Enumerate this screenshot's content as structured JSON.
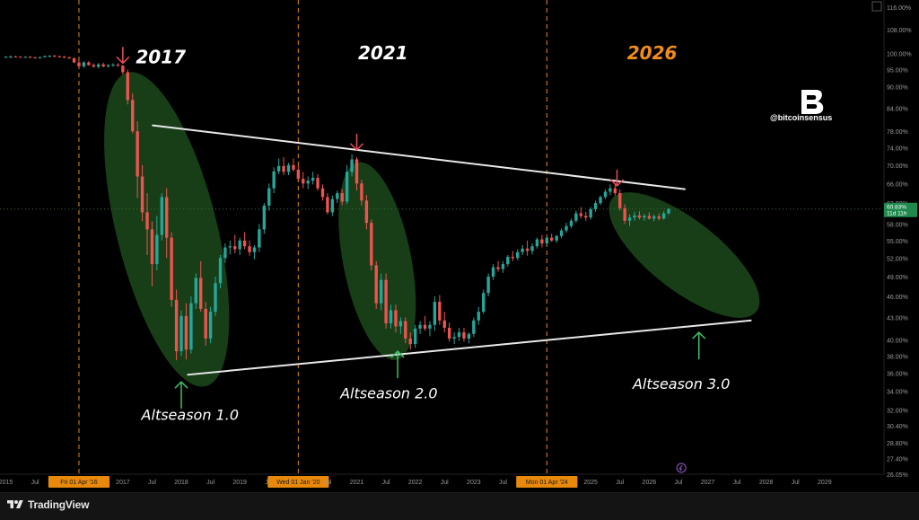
{
  "app": {
    "name": "TradingView"
  },
  "brand": {
    "handle": "@bitcoinsensus",
    "logo_letter": "B"
  },
  "colors": {
    "background": "#000000",
    "candle_up": "#26a69a",
    "candle_down": "#ef5350",
    "ellipse_fill": "#1f4f1f",
    "trendline": "#e8e8e8",
    "vline": "#e8890c",
    "arrow_down": "#ef4b5a",
    "arrow_up": "#3fbf6a",
    "year_white": "#ffffff",
    "year_orange": "#f28c1b"
  },
  "chart_data": {
    "type": "candlestick",
    "title": "",
    "ylabel": "",
    "xlabel": "",
    "y_scale": "log",
    "ylim": [
      26.05,
      116.0
    ],
    "xlim": [
      2014.9,
      2030.0
    ],
    "grid": false,
    "current_value_label": "60.83%",
    "countdown_label": "11d 11h",
    "y_ticks": [
      "116.00%",
      "108.00%",
      "100.00%",
      "95.00%",
      "90.00%",
      "84.00%",
      "78.00%",
      "74.00%",
      "70.00%",
      "66.00%",
      "62.00%",
      "58.00%",
      "55.00%",
      "52.00%",
      "49.00%",
      "46.00%",
      "43.00%",
      "40.00%",
      "38.00%",
      "36.00%",
      "34.00%",
      "32.00%",
      "30.40%",
      "28.80%",
      "27.40%",
      "26.05%"
    ],
    "x_ticks": [
      {
        "t": 2015.0,
        "label": "2015"
      },
      {
        "t": 2015.5,
        "label": "Jul"
      },
      {
        "t": 2016.25,
        "label": "Fri 01 Apr '16",
        "highlight": true
      },
      {
        "t": 2017.0,
        "label": "2017"
      },
      {
        "t": 2017.5,
        "label": "Jul"
      },
      {
        "t": 2018.0,
        "label": "2018"
      },
      {
        "t": 2018.5,
        "label": "Jul"
      },
      {
        "t": 2019.0,
        "label": "2019"
      },
      {
        "t": 2019.5,
        "label": "Jul"
      },
      {
        "t": 2020.0,
        "label": "Wed 01 Jan '20",
        "highlight": true
      },
      {
        "t": 2020.5,
        "label": "Jul"
      },
      {
        "t": 2021.0,
        "label": "2021"
      },
      {
        "t": 2021.5,
        "label": "Jul"
      },
      {
        "t": 2022.0,
        "label": "2022"
      },
      {
        "t": 2022.5,
        "label": "Jul"
      },
      {
        "t": 2023.0,
        "label": "2023"
      },
      {
        "t": 2023.5,
        "label": "Jul"
      },
      {
        "t": 2024.25,
        "label": "Mon 01 Apr '24",
        "highlight": true
      },
      {
        "t": 2025.0,
        "label": "2025"
      },
      {
        "t": 2025.5,
        "label": "Jul"
      },
      {
        "t": 2026.0,
        "label": "2026"
      },
      {
        "t": 2026.5,
        "label": "Jul"
      },
      {
        "t": 2027.0,
        "label": "2027"
      },
      {
        "t": 2027.5,
        "label": "Jul"
      },
      {
        "t": 2028.0,
        "label": "2028"
      },
      {
        "t": 2028.5,
        "label": "Jul"
      },
      {
        "t": 2029.0,
        "label": "2029"
      }
    ],
    "vertical_lines": [
      2016.25,
      2020.0,
      2024.25
    ],
    "trendlines": [
      {
        "name": "upper",
        "from": [
          2017.5,
          79.5
        ],
        "to": [
          2026.62,
          64.8
        ]
      },
      {
        "name": "lower",
        "from": [
          2018.1,
          35.8
        ],
        "to": [
          2027.75,
          42.6
        ]
      }
    ],
    "ellipses": [
      {
        "cx_t": 2017.75,
        "cy_v": 57.0,
        "label": "Altseason 1.0"
      },
      {
        "cx_t": 2021.35,
        "cy_v": 51.5,
        "label": "Altseason 2.0"
      },
      {
        "cx_t": 2026.6,
        "cy_v": 52.5,
        "label": "Altseason 3.0"
      }
    ],
    "annotations": [
      {
        "text": "2017",
        "t": 2017.65,
        "v": 97.0,
        "color": "white"
      },
      {
        "text": "2021",
        "t": 2021.45,
        "v": 98.2,
        "color": "white"
      },
      {
        "text": "2026",
        "t": 2026.05,
        "v": 98.2,
        "color": "orange"
      },
      {
        "text": "Altseason 1.0",
        "t": 2018.15,
        "v": 31.0
      },
      {
        "text": "Altseason 2.0",
        "t": 2021.55,
        "v": 33.2
      },
      {
        "text": "Altseason 3.0",
        "t": 2026.55,
        "v": 34.2
      }
    ],
    "arrows_down": [
      {
        "t": 2017.0,
        "v": 97.0
      },
      {
        "t": 2021.0,
        "v": 73.5
      },
      {
        "t": 2025.45,
        "v": 65.5
      }
    ],
    "arrows_up": [
      {
        "t": 2018.0,
        "v": 35.0
      },
      {
        "t": 2021.7,
        "v": 38.6
      },
      {
        "t": 2026.85,
        "v": 41.0
      }
    ],
    "candles": [
      [
        2015.0,
        99.0,
        99.2,
        98.6,
        99.0
      ],
      [
        2015.083,
        99.0,
        99.4,
        98.5,
        99.1
      ],
      [
        2015.167,
        99.1,
        99.3,
        98.8,
        99.0
      ],
      [
        2015.25,
        99.0,
        99.2,
        98.7,
        98.9
      ],
      [
        2015.333,
        98.9,
        99.1,
        98.6,
        99.0
      ],
      [
        2015.417,
        99.0,
        99.2,
        98.6,
        98.8
      ],
      [
        2015.5,
        98.8,
        99.0,
        98.5,
        98.7
      ],
      [
        2015.583,
        98.7,
        99.0,
        98.3,
        98.9
      ],
      [
        2015.667,
        98.9,
        99.4,
        98.7,
        99.2
      ],
      [
        2015.75,
        99.2,
        99.5,
        98.8,
        99.3
      ],
      [
        2015.833,
        99.3,
        99.6,
        98.9,
        99.1
      ],
      [
        2015.917,
        99.1,
        99.4,
        98.8,
        99.0
      ],
      [
        2016.0,
        99.0,
        99.3,
        98.6,
        98.8
      ],
      [
        2016.083,
        98.8,
        99.0,
        98.3,
        98.5
      ],
      [
        2016.167,
        98.5,
        98.8,
        97.0,
        97.2
      ],
      [
        2016.25,
        97.2,
        97.8,
        95.6,
        96.0
      ],
      [
        2016.333,
        96.0,
        97.6,
        95.5,
        97.2
      ],
      [
        2016.417,
        97.2,
        97.6,
        96.2,
        96.4
      ],
      [
        2016.5,
        96.4,
        96.9,
        95.6,
        95.9
      ],
      [
        2016.583,
        95.9,
        97.0,
        95.4,
        96.6
      ],
      [
        2016.667,
        96.6,
        97.1,
        95.7,
        96.0
      ],
      [
        2016.75,
        96.0,
        96.7,
        95.6,
        96.3
      ],
      [
        2016.833,
        96.3,
        97.0,
        95.9,
        96.5
      ],
      [
        2016.917,
        96.5,
        97.0,
        95.9,
        96.2
      ],
      [
        2017.0,
        96.2,
        96.4,
        93.5,
        94.2
      ],
      [
        2017.083,
        94.2,
        95.0,
        85.0,
        86.2
      ],
      [
        2017.167,
        86.2,
        88.0,
        77.5,
        78.0
      ],
      [
        2017.25,
        78.0,
        80.5,
        63.0,
        67.5
      ],
      [
        2017.333,
        67.5,
        70.0,
        58.5,
        60.2
      ],
      [
        2017.417,
        60.2,
        64.0,
        52.5,
        57.0
      ],
      [
        2017.5,
        57.0,
        58.5,
        47.5,
        51.0
      ],
      [
        2017.583,
        51.0,
        59.5,
        50.0,
        56.0
      ],
      [
        2017.667,
        56.0,
        64.0,
        55.0,
        63.2
      ],
      [
        2017.75,
        63.2,
        65.0,
        52.0,
        55.5
      ],
      [
        2017.833,
        55.5,
        56.5,
        44.5,
        45.5
      ],
      [
        2017.917,
        45.5,
        47.0,
        37.5,
        38.6
      ],
      [
        2018.0,
        38.6,
        44.0,
        38.0,
        43.2
      ],
      [
        2018.083,
        43.2,
        45.0,
        37.6,
        38.8
      ],
      [
        2018.167,
        38.8,
        46.0,
        38.3,
        45.0
      ],
      [
        2018.25,
        45.0,
        49.5,
        44.2,
        48.8
      ],
      [
        2018.333,
        48.8,
        51.5,
        43.8,
        44.2
      ],
      [
        2018.417,
        44.2,
        45.2,
        39.3,
        40.2
      ],
      [
        2018.5,
        40.2,
        44.5,
        39.6,
        43.8
      ],
      [
        2018.583,
        43.8,
        49.0,
        43.2,
        48.0
      ],
      [
        2018.667,
        48.0,
        52.5,
        47.2,
        52.0
      ],
      [
        2018.75,
        52.0,
        54.5,
        51.2,
        53.8
      ],
      [
        2018.833,
        53.8,
        55.0,
        52.6,
        54.0
      ],
      [
        2018.917,
        54.0,
        56.0,
        52.8,
        53.5
      ],
      [
        2019.0,
        53.5,
        55.5,
        52.5,
        55.0
      ],
      [
        2019.083,
        55.0,
        56.5,
        53.5,
        54.0
      ],
      [
        2019.167,
        54.0,
        55.0,
        52.4,
        53.0
      ],
      [
        2019.25,
        53.0,
        54.2,
        51.8,
        53.8
      ],
      [
        2019.333,
        53.8,
        58.0,
        53.0,
        57.0
      ],
      [
        2019.417,
        57.0,
        62.0,
        56.2,
        61.5
      ],
      [
        2019.5,
        61.5,
        66.0,
        60.5,
        65.0
      ],
      [
        2019.583,
        65.0,
        69.5,
        64.0,
        68.6
      ],
      [
        2019.667,
        68.6,
        71.5,
        68.0,
        69.8
      ],
      [
        2019.75,
        69.8,
        71.8,
        67.8,
        68.5
      ],
      [
        2019.833,
        68.5,
        70.5,
        67.8,
        70.0
      ],
      [
        2019.917,
        70.0,
        71.5,
        68.6,
        69.0
      ],
      [
        2020.0,
        69.0,
        69.8,
        66.5,
        67.0
      ],
      [
        2020.083,
        67.0,
        68.5,
        65.0,
        66.0
      ],
      [
        2020.167,
        66.0,
        67.5,
        64.8,
        66.6
      ],
      [
        2020.25,
        66.6,
        68.5,
        65.8,
        67.2
      ],
      [
        2020.333,
        67.2,
        68.0,
        64.5,
        65.0
      ],
      [
        2020.417,
        65.0,
        65.8,
        62.5,
        63.2
      ],
      [
        2020.5,
        63.2,
        64.0,
        59.8,
        60.2
      ],
      [
        2020.583,
        60.2,
        63.5,
        59.5,
        62.8
      ],
      [
        2020.667,
        62.8,
        64.5,
        62.0,
        64.0
      ],
      [
        2020.75,
        64.0,
        64.8,
        61.6,
        62.3
      ],
      [
        2020.833,
        62.3,
        70.0,
        61.8,
        68.5
      ],
      [
        2020.917,
        68.5,
        72.5,
        67.5,
        71.3
      ],
      [
        2021.0,
        71.3,
        71.8,
        64.5,
        66.0
      ],
      [
        2021.083,
        66.0,
        66.8,
        61.5,
        62.5
      ],
      [
        2021.167,
        62.5,
        63.6,
        57.0,
        58.2
      ],
      [
        2021.25,
        58.2,
        58.8,
        50.0,
        50.8
      ],
      [
        2021.333,
        50.8,
        51.5,
        44.2,
        45.0
      ],
      [
        2021.417,
        45.0,
        49.5,
        44.0,
        48.5
      ],
      [
        2021.5,
        48.5,
        49.5,
        41.5,
        42.2
      ],
      [
        2021.583,
        42.2,
        44.8,
        41.5,
        44.0
      ],
      [
        2021.667,
        44.0,
        44.8,
        41.0,
        41.8
      ],
      [
        2021.75,
        41.8,
        43.0,
        40.8,
        42.5
      ],
      [
        2021.833,
        42.5,
        43.0,
        39.6,
        40.2
      ],
      [
        2021.917,
        40.2,
        41.0,
        38.8,
        39.5
      ],
      [
        2022.0,
        39.5,
        42.0,
        39.0,
        41.5
      ],
      [
        2022.083,
        41.5,
        42.5,
        40.8,
        42.0
      ],
      [
        2022.167,
        42.0,
        43.2,
        41.2,
        41.5
      ],
      [
        2022.25,
        41.5,
        42.5,
        40.5,
        42.0
      ],
      [
        2022.333,
        42.0,
        46.0,
        41.2,
        45.2
      ],
      [
        2022.417,
        45.2,
        46.2,
        42.0,
        42.6
      ],
      [
        2022.5,
        42.6,
        43.8,
        41.0,
        41.6
      ],
      [
        2022.583,
        41.6,
        42.3,
        39.8,
        40.2
      ],
      [
        2022.667,
        40.2,
        41.0,
        39.5,
        40.4
      ],
      [
        2022.75,
        40.4,
        41.6,
        39.9,
        41.0
      ],
      [
        2022.833,
        41.0,
        41.6,
        39.8,
        40.2
      ],
      [
        2022.917,
        40.2,
        41.0,
        39.6,
        40.8
      ],
      [
        2023.0,
        40.8,
        43.0,
        40.4,
        42.6
      ],
      [
        2023.083,
        42.6,
        44.5,
        42.0,
        43.8
      ],
      [
        2023.167,
        43.8,
        47.0,
        43.5,
        46.5
      ],
      [
        2023.25,
        46.5,
        49.5,
        46.0,
        49.0
      ],
      [
        2023.333,
        49.0,
        51.0,
        48.5,
        50.5
      ],
      [
        2023.417,
        50.5,
        51.5,
        49.8,
        50.2
      ],
      [
        2023.5,
        50.2,
        51.5,
        49.6,
        51.0
      ],
      [
        2023.583,
        51.0,
        52.5,
        50.6,
        52.2
      ],
      [
        2023.667,
        52.2,
        53.2,
        51.5,
        52.0
      ],
      [
        2023.75,
        52.0,
        53.5,
        51.6,
        53.0
      ],
      [
        2023.833,
        53.0,
        54.2,
        52.5,
        53.6
      ],
      [
        2023.917,
        53.6,
        55.0,
        52.4,
        53.2
      ],
      [
        2024.0,
        53.2,
        54.5,
        52.6,
        54.0
      ],
      [
        2024.083,
        54.0,
        55.5,
        53.6,
        55.2
      ],
      [
        2024.167,
        55.2,
        56.0,
        53.8,
        54.5
      ],
      [
        2024.25,
        54.5,
        55.8,
        54.0,
        55.5
      ],
      [
        2024.333,
        55.5,
        56.2,
        54.8,
        55.0
      ],
      [
        2024.417,
        55.0,
        56.0,
        54.6,
        55.8
      ],
      [
        2024.5,
        55.8,
        57.2,
        55.4,
        56.8
      ],
      [
        2024.583,
        56.8,
        58.2,
        56.4,
        57.6
      ],
      [
        2024.667,
        57.6,
        59.0,
        57.2,
        58.6
      ],
      [
        2024.75,
        58.6,
        60.5,
        58.2,
        60.0
      ],
      [
        2024.833,
        60.0,
        61.2,
        59.0,
        59.5
      ],
      [
        2024.917,
        59.5,
        60.3,
        58.6,
        59.2
      ],
      [
        2025.0,
        59.2,
        61.2,
        58.8,
        60.8
      ],
      [
        2025.083,
        60.8,
        62.5,
        60.3,
        62.0
      ],
      [
        2025.167,
        62.0,
        63.5,
        61.6,
        63.2
      ],
      [
        2025.25,
        63.2,
        64.8,
        62.8,
        64.3
      ],
      [
        2025.333,
        64.3,
        65.8,
        63.6,
        65.0
      ],
      [
        2025.417,
        65.0,
        66.0,
        63.5,
        64.0
      ],
      [
        2025.5,
        64.0,
        64.8,
        60.5,
        61.0
      ],
      [
        2025.583,
        61.0,
        61.8,
        58.0,
        58.6
      ],
      [
        2025.667,
        58.6,
        59.8,
        57.6,
        59.2
      ],
      [
        2025.75,
        59.2,
        60.3,
        58.6,
        59.6
      ],
      [
        2025.833,
        59.6,
        60.4,
        58.8,
        59.2
      ],
      [
        2025.917,
        59.2,
        59.9,
        58.6,
        59.5
      ],
      [
        2026.0,
        59.5,
        60.2,
        58.8,
        59.0
      ],
      [
        2026.083,
        59.0,
        59.8,
        58.5,
        59.4
      ],
      [
        2026.167,
        59.4,
        60.0,
        58.7,
        59.0
      ],
      [
        2026.25,
        59.0,
        60.4,
        58.8,
        60.0
      ],
      [
        2026.333,
        60.0,
        61.0,
        59.7,
        60.83
      ]
    ]
  }
}
